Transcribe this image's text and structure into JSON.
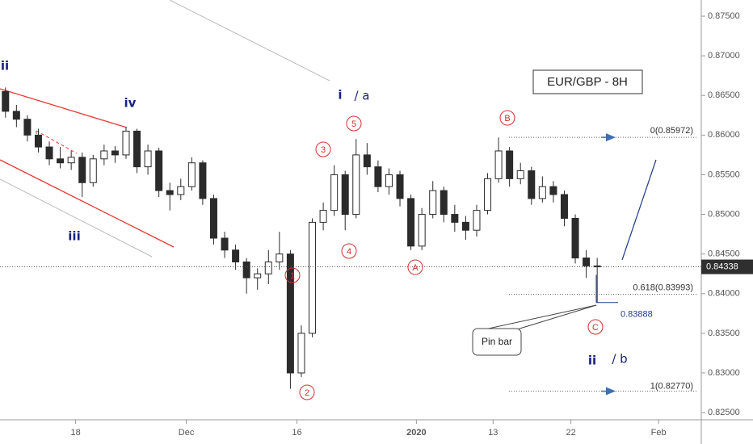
{
  "chart_data": {
    "type": "candlestick",
    "title": "EUR/GBP - 8H",
    "open": [
      0.8655,
      0.863,
      0.862,
      0.86,
      0.8585,
      0.857,
      0.8565,
      0.8572,
      0.854,
      0.857,
      0.858,
      0.8575,
      0.8605,
      0.856,
      0.858,
      0.853,
      0.8525,
      0.8535,
      0.8565,
      0.852,
      0.847,
      0.8455,
      0.844,
      0.842,
      0.8425,
      0.844,
      0.845,
      0.83,
      0.835,
      0.849,
      0.8505,
      0.855,
      0.85,
      0.8575,
      0.856,
      0.8535,
      0.855,
      0.852,
      0.846,
      0.85,
      0.853,
      0.85,
      0.849,
      0.848,
      0.8505,
      0.8545,
      0.858,
      0.8545,
      0.8555,
      0.852,
      0.8535,
      0.8525,
      0.8495,
      0.8445,
      0.8435
    ],
    "high": [
      0.866,
      0.8638,
      0.8625,
      0.8608,
      0.8592,
      0.8585,
      0.858,
      0.8578,
      0.8575,
      0.8588,
      0.8586,
      0.861,
      0.8608,
      0.8588,
      0.8584,
      0.854,
      0.8545,
      0.8572,
      0.8568,
      0.8525,
      0.8478,
      0.8462,
      0.8445,
      0.8432,
      0.8455,
      0.8478,
      0.8455,
      0.836,
      0.8495,
      0.8515,
      0.8562,
      0.8555,
      0.8595,
      0.859,
      0.8568,
      0.8558,
      0.8555,
      0.8525,
      0.8508,
      0.8542,
      0.8535,
      0.8512,
      0.8498,
      0.8512,
      0.8552,
      0.8597,
      0.8585,
      0.8565,
      0.856,
      0.8548,
      0.8542,
      0.853,
      0.85,
      0.8455,
      0.8445
    ],
    "low": [
      0.8622,
      0.861,
      0.8592,
      0.8578,
      0.8562,
      0.8558,
      0.8556,
      0.8522,
      0.8535,
      0.8562,
      0.8565,
      0.857,
      0.8552,
      0.855,
      0.8522,
      0.8505,
      0.8518,
      0.853,
      0.8512,
      0.8462,
      0.8445,
      0.843,
      0.84,
      0.8405,
      0.8412,
      0.843,
      0.828,
      0.8295,
      0.8345,
      0.848,
      0.8498,
      0.848,
      0.8495,
      0.855,
      0.8528,
      0.8525,
      0.851,
      0.8455,
      0.8455,
      0.8495,
      0.849,
      0.8478,
      0.8468,
      0.8472,
      0.85,
      0.854,
      0.8535,
      0.8538,
      0.8512,
      0.8515,
      0.8515,
      0.8485,
      0.8438,
      0.842,
      0.83888
    ],
    "close": [
      0.863,
      0.862,
      0.86,
      0.8585,
      0.857,
      0.8565,
      0.8572,
      0.854,
      0.857,
      0.858,
      0.8575,
      0.8605,
      0.856,
      0.858,
      0.853,
      0.8525,
      0.8535,
      0.8565,
      0.852,
      0.847,
      0.8455,
      0.844,
      0.842,
      0.8425,
      0.844,
      0.845,
      0.83,
      0.835,
      0.849,
      0.8505,
      0.855,
      0.85,
      0.8575,
      0.856,
      0.8535,
      0.855,
      0.852,
      0.846,
      0.85,
      0.853,
      0.85,
      0.849,
      0.848,
      0.8505,
      0.8545,
      0.858,
      0.8545,
      0.8555,
      0.852,
      0.8535,
      0.8525,
      0.8495,
      0.8445,
      0.8435,
      0.84338
    ],
    "color": "#2b2b2b",
    "xlim": [
      -0.5,
      63.5
    ],
    "xticks": [
      {
        "value": 6.4,
        "label": "18"
      },
      {
        "value": 16.5,
        "label": "Dec"
      },
      {
        "value": 26.6,
        "label": "16"
      },
      {
        "value": 37.5,
        "label": "2020"
      },
      {
        "value": 44.5,
        "label": "13"
      },
      {
        "value": 51.6,
        "label": "22"
      },
      {
        "value": 59.6,
        "label": "Feb"
      }
    ],
    "ylim": [
      0.82409,
      0.87704
    ],
    "yticks": [
      {
        "value": 0.875,
        "label": "0.87500"
      },
      {
        "value": 0.87,
        "label": "0.87000"
      },
      {
        "value": 0.865,
        "label": "0.86500"
      },
      {
        "value": 0.86,
        "label": "0.86000"
      },
      {
        "value": 0.855,
        "label": "0.85500"
      },
      {
        "value": 0.85,
        "label": "0.85000"
      },
      {
        "value": 0.845,
        "label": "0.84500"
      },
      {
        "value": 0.84,
        "label": "0.84000"
      },
      {
        "value": 0.835,
        "label": "0.83500"
      },
      {
        "value": 0.83,
        "label": "0.83000"
      },
      {
        "value": 0.825,
        "label": "0.82500"
      }
    ],
    "last_price": {
      "value": 0.84338,
      "label": "0.84338"
    },
    "levels": [
      {
        "value": 0.85972,
        "label": "0(0.85972)"
      },
      {
        "value": 0.83993,
        "label": "0.618(0.83993)"
      },
      {
        "value": 0.8277,
        "label": "1(0.82770)"
      },
      {
        "value": 0.83888,
        "label": "0.83888"
      }
    ],
    "waves": [
      "ii",
      "iv",
      "iii",
      "i",
      "/ a",
      "ii",
      "/ b"
    ],
    "circled": [
      "1",
      "2",
      "3",
      "4",
      "5",
      "A",
      "B",
      "C"
    ],
    "callout": "Pin bar"
  }
}
